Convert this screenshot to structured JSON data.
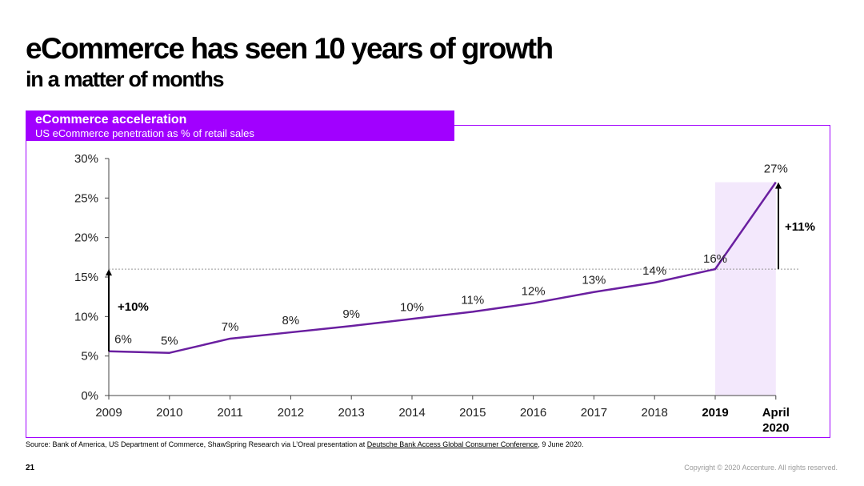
{
  "slide": {
    "title": "eCommerce has seen 10 years of growth",
    "subtitle": "in a matter of months",
    "banner_title": "eCommerce acceleration",
    "banner_subtitle": "US eCommerce penetration as % of retail sales",
    "source_prefix": "Source: Bank of America, US Department of Commerce, ShawSpring Research via L’Oreal presentation at ",
    "source_link": "Deutsche Bank Access Global Consumer Conference",
    "source_suffix": ", 9 June 2020.",
    "page_number": "21",
    "copyright": "Copyright © 2020 Accenture. All rights reserved."
  },
  "colors": {
    "accent": "#a100ff",
    "line": "#6a1fa0",
    "highlight_band": "#f3e8fc"
  },
  "chart_data": {
    "type": "line",
    "categories": [
      "2009",
      "2010",
      "2011",
      "2012",
      "2013",
      "2014",
      "2015",
      "2016",
      "2017",
      "2018",
      "2019",
      "April 2020"
    ],
    "category_lines": [
      [
        "2009"
      ],
      [
        "2010"
      ],
      [
        "2011"
      ],
      [
        "2012"
      ],
      [
        "2013"
      ],
      [
        "2014"
      ],
      [
        "2015"
      ],
      [
        "2016"
      ],
      [
        "2017"
      ],
      [
        "2018"
      ],
      [
        "2019"
      ],
      [
        "April",
        "2020"
      ]
    ],
    "bold_categories": [
      "2019",
      "April 2020"
    ],
    "values": [
      5.6,
      5.4,
      7.2,
      8.0,
      8.8,
      9.7,
      10.6,
      11.7,
      13.1,
      14.3,
      16.0,
      27.0
    ],
    "data_labels": [
      "6%",
      "5%",
      "7%",
      "8%",
      "9%",
      "10%",
      "11%",
      "12%",
      "13%",
      "14%",
      "16%",
      "27%"
    ],
    "yticks": [
      0,
      5,
      10,
      15,
      20,
      25,
      30
    ],
    "ytick_labels": [
      "0%",
      "5%",
      "10%",
      "15%",
      "20%",
      "25%",
      "30%"
    ],
    "ylim": [
      0,
      30
    ],
    "grid": false,
    "reference_line_value": 16,
    "highlighted_range": [
      "2019",
      "April 2020"
    ],
    "annotations": [
      {
        "text": "+10%",
        "from": 5.6,
        "to": 16,
        "at": "2009"
      },
      {
        "text": "+11%",
        "from": 16,
        "to": 27,
        "at": "April 2020"
      }
    ]
  }
}
